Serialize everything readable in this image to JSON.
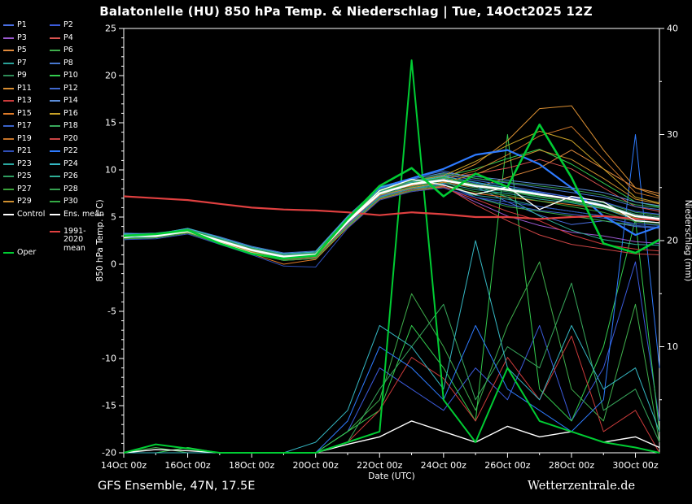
{
  "title": "Balatonlelle  (HU)  850 hPa Temp. & Niederschlag | Tue, 14Oct2025 12Z",
  "footer": {
    "left": "GFS Ensemble, 47N, 17.5E",
    "right": "Wetterzentrale.de"
  },
  "chart_data": {
    "type": "line",
    "title": "Balatonlelle (HU) 850 hPa Temp. & Niederschlag | Tue, 14Oct2025 12Z",
    "xlabel": "Date (UTC)",
    "ylabel_left": "850 hPa Temp. (°C)",
    "ylabel_right": "Niederschlag (mm)",
    "ylim_left": [
      -20,
      25
    ],
    "ylim_right": [
      0,
      40
    ],
    "y_ticks_left": [
      25,
      20,
      15,
      10,
      5,
      0,
      -5,
      -10,
      -15,
      -20
    ],
    "y_ticks_right": [
      40,
      30,
      20,
      10
    ],
    "x_domain": [
      14,
      30.75
    ],
    "x_ticks": [
      {
        "day": 14,
        "label": "14Oct 00z"
      },
      {
        "day": 16,
        "label": "16Oct 00z"
      },
      {
        "day": 18,
        "label": "18Oct 00z"
      },
      {
        "day": 20,
        "label": "20Oct 00z"
      },
      {
        "day": 22,
        "label": "22Oct 00z"
      },
      {
        "day": 24,
        "label": "24Oct 00z"
      },
      {
        "day": 26,
        "label": "26Oct 00z"
      },
      {
        "day": 28,
        "label": "28Oct 00z"
      },
      {
        "day": 30,
        "label": "30Oct 00z"
      }
    ],
    "x_days": [
      14,
      15,
      16,
      17,
      18,
      19,
      20,
      21,
      22,
      23,
      24,
      25,
      26,
      27,
      28,
      29,
      30,
      30.75
    ],
    "members": [
      {
        "label": "P1",
        "color": "#4a6fe3",
        "temp": [
          2.6,
          2.9,
          3.3,
          2.3,
          1.3,
          0.6,
          0.8,
          4.2,
          7.0,
          8.6,
          9.0,
          8.2,
          6.6,
          5.2,
          4.2,
          4.6,
          4.0,
          3.8
        ]
      },
      {
        "label": "P2",
        "color": "#3b5bdb",
        "temp": [
          3.2,
          3.1,
          3.7,
          2.8,
          1.8,
          1.1,
          1.3,
          4.9,
          8.0,
          8.9,
          9.4,
          8.6,
          8.1,
          7.6,
          7.1,
          6.6,
          5.6,
          5.3
        ],
        "precip": [
          0,
          0,
          0,
          0,
          0,
          0,
          0,
          2,
          8,
          6,
          4,
          8,
          5,
          12,
          3,
          8,
          18,
          3
        ]
      },
      {
        "label": "P3",
        "color": "#9b59d0",
        "temp": [
          2.8,
          3.0,
          3.4,
          2.4,
          1.4,
          0.7,
          0.9,
          4.3,
          7.2,
          8.0,
          8.2,
          6.6,
          5.1,
          4.1,
          3.4,
          3.0,
          2.4,
          2.2
        ]
      },
      {
        "label": "P4",
        "color": "#d9534f",
        "temp": [
          3.1,
          3.2,
          3.6,
          2.7,
          1.7,
          1.0,
          1.2,
          4.8,
          7.8,
          8.3,
          9.1,
          9.6,
          10.2,
          11.1,
          10.1,
          8.1,
          6.1,
          5.6
        ]
      },
      {
        "label": "P5",
        "color": "#e08a3c",
        "temp": [
          2.9,
          3.0,
          3.5,
          2.5,
          1.5,
          0.8,
          1.0,
          4.5,
          7.4,
          8.1,
          8.7,
          8.1,
          9.2,
          10.2,
          12.1,
          10.1,
          8.1,
          7.5
        ]
      },
      {
        "label": "P6",
        "color": "#3fae4c",
        "temp": [
          3.0,
          3.1,
          3.6,
          2.7,
          1.7,
          1.0,
          1.1,
          4.6,
          7.6,
          8.5,
          8.9,
          7.1,
          6.1,
          5.6,
          5.1,
          4.6,
          4.1,
          3.9
        ],
        "precip": [
          0,
          0.5,
          0,
          0,
          0,
          0,
          0,
          2,
          5,
          15,
          10,
          4,
          12,
          18,
          6,
          3,
          14,
          1
        ]
      },
      {
        "label": "P7",
        "color": "#2aa198",
        "temp": [
          2.7,
          2.9,
          3.3,
          2.3,
          1.3,
          0.5,
          0.7,
          4.1,
          7.1,
          8.0,
          8.4,
          7.3,
          6.9,
          6.1,
          5.6,
          5.1,
          4.6,
          4.4
        ]
      },
      {
        "label": "P8",
        "color": "#4878d0",
        "temp": [
          3.3,
          3.2,
          3.8,
          2.9,
          1.9,
          1.2,
          1.4,
          5.1,
          8.2,
          9.1,
          9.9,
          9.1,
          8.6,
          8.1,
          7.6,
          7.1,
          6.1,
          5.8
        ]
      },
      {
        "label": "P9",
        "color": "#2e8b57",
        "temp": [
          2.6,
          2.8,
          3.4,
          2.4,
          1.2,
          0.4,
          0.6,
          4.4,
          7.3,
          8.2,
          8.8,
          8.3,
          7.9,
          7.1,
          6.6,
          6.1,
          5.1,
          4.8
        ]
      },
      {
        "label": "P10",
        "color": "#33cc4e",
        "temp": [
          3.0,
          3.0,
          3.5,
          2.6,
          1.6,
          0.9,
          1.1,
          4.7,
          7.7,
          8.6,
          9.3,
          10.1,
          11.2,
          12.2,
          10.6,
          8.6,
          6.6,
          6.1
        ],
        "precip": [
          0,
          0,
          0.5,
          0,
          0,
          0,
          0,
          2,
          4,
          12,
          8,
          3,
          30,
          6,
          3,
          10,
          22,
          2
        ]
      },
      {
        "label": "P11",
        "color": "#d98e32",
        "temp": [
          2.8,
          3.1,
          3.5,
          2.5,
          1.4,
          0.7,
          0.9,
          4.6,
          7.5,
          8.4,
          9.1,
          10.6,
          13.1,
          16.5,
          16.8,
          12.1,
          8.1,
          7.2
        ]
      },
      {
        "label": "P12",
        "color": "#4169cf",
        "temp": [
          3.1,
          3.0,
          3.6,
          2.7,
          1.8,
          1.1,
          1.2,
          4.9,
          7.9,
          8.7,
          9.5,
          8.9,
          8.3,
          7.7,
          7.1,
          6.3,
          5.3,
          5.0
        ]
      },
      {
        "label": "P13",
        "color": "#cc3b3b",
        "temp": [
          2.9,
          2.9,
          3.4,
          2.3,
          1.3,
          0.6,
          0.8,
          4.2,
          7.0,
          7.7,
          8.1,
          6.9,
          5.6,
          4.6,
          3.1,
          2.1,
          1.6,
          1.4
        ],
        "precip": [
          0,
          0,
          0,
          0,
          0,
          0,
          0,
          1,
          4,
          9,
          7,
          3,
          9,
          5,
          11,
          2,
          4,
          0
        ]
      },
      {
        "label": "P14",
        "color": "#5b8dd9",
        "temp": [
          3.2,
          3.3,
          3.7,
          2.8,
          1.7,
          1.0,
          1.3,
          5.0,
          8.1,
          9.0,
          9.7,
          9.3,
          8.9,
          8.5,
          8.1,
          7.6,
          6.6,
          6.2
        ]
      },
      {
        "label": "P15",
        "color": "#e07b28",
        "temp": [
          2.7,
          2.8,
          3.3,
          2.2,
          1.1,
          0.0,
          0.5,
          3.9,
          6.9,
          7.8,
          8.2,
          7.5,
          7.1,
          6.7,
          6.3,
          5.9,
          4.9,
          4.6
        ]
      },
      {
        "label": "P16",
        "color": "#c9a227",
        "temp": [
          3.0,
          3.2,
          3.6,
          2.6,
          1.5,
          0.8,
          1.0,
          4.6,
          7.8,
          8.8,
          9.4,
          10.9,
          12.6,
          14.1,
          13.1,
          10.1,
          7.1,
          6.5
        ]
      },
      {
        "label": "P17",
        "color": "#3a62c9",
        "temp": [
          2.8,
          3.0,
          3.5,
          2.4,
          1.4,
          0.7,
          0.9,
          4.3,
          7.2,
          8.1,
          8.5,
          7.1,
          6.3,
          5.7,
          5.3,
          4.9,
          4.3,
          4.1
        ]
      },
      {
        "label": "P18",
        "color": "#38a85c",
        "temp": [
          3.1,
          3.1,
          3.7,
          2.7,
          1.6,
          0.9,
          1.1,
          4.8,
          7.9,
          8.9,
          9.2,
          8.5,
          8.0,
          7.3,
          6.9,
          6.5,
          5.5,
          5.2
        ],
        "precip": [
          0,
          0,
          0,
          0,
          0,
          0,
          0,
          1,
          6,
          10,
          14,
          5,
          10,
          8,
          16,
          4,
          6,
          1
        ]
      },
      {
        "label": "P19",
        "color": "#c77429",
        "temp": [
          2.9,
          3.0,
          3.4,
          2.5,
          1.5,
          0.8,
          1.0,
          4.5,
          7.6,
          8.3,
          9.0,
          9.9,
          11.6,
          13.6,
          14.6,
          11.1,
          7.6,
          7.0
        ]
      },
      {
        "label": "P20",
        "color": "#cc4444",
        "temp": [
          3.0,
          2.9,
          3.5,
          2.4,
          1.3,
          0.5,
          0.7,
          4.0,
          7.0,
          7.9,
          8.3,
          6.3,
          4.6,
          3.1,
          2.1,
          1.6,
          1.1,
          1.0
        ]
      },
      {
        "label": "P21",
        "color": "#2f4fb8",
        "temp": [
          2.6,
          2.7,
          3.2,
          2.1,
          1.0,
          -0.2,
          -0.3,
          3.8,
          6.8,
          7.7,
          8.1,
          7.1,
          6.6,
          6.1,
          5.6,
          5.1,
          4.1,
          3.9
        ]
      },
      {
        "label": "P22",
        "color": "#2e7bff",
        "width": 2.2,
        "temp": [
          3.0,
          3.1,
          3.6,
          2.6,
          1.6,
          0.9,
          1.1,
          4.8,
          8.1,
          9.1,
          10.1,
          11.6,
          12.1,
          10.6,
          8.1,
          5.1,
          3.1,
          4.0
        ],
        "precip": [
          0,
          0,
          0,
          0,
          0,
          0,
          0,
          3,
          10,
          8,
          5,
          12,
          6,
          4,
          2,
          5,
          30,
          8
        ]
      },
      {
        "label": "P23",
        "color": "#2aa8a0",
        "temp": [
          2.8,
          2.9,
          3.4,
          2.3,
          1.2,
          0.4,
          0.6,
          4.1,
          7.1,
          8.0,
          8.6,
          7.9,
          7.5,
          6.9,
          6.5,
          5.9,
          4.7,
          4.4
        ]
      },
      {
        "label": "P24",
        "color": "#35b8c4",
        "temp": [
          3.2,
          3.2,
          3.8,
          2.8,
          1.8,
          1.1,
          1.3,
          5.0,
          8.2,
          8.7,
          9.3,
          8.7,
          8.1,
          7.5,
          6.9,
          6.1,
          5.1,
          4.8
        ],
        "precip": [
          0,
          0,
          0,
          0,
          0,
          0,
          1,
          4,
          12,
          10,
          6,
          20,
          8,
          5,
          12,
          6,
          8,
          2
        ]
      },
      {
        "label": "P25",
        "color": "#2f9e60",
        "temp": [
          2.9,
          3.0,
          3.5,
          2.5,
          1.4,
          0.6,
          0.8,
          4.4,
          7.4,
          8.2,
          8.9,
          8.1,
          7.7,
          7.1,
          6.7,
          6.3,
          5.3,
          5.0
        ]
      },
      {
        "label": "P26",
        "color": "#2fae96",
        "temp": [
          3.0,
          3.1,
          3.5,
          2.6,
          1.5,
          0.8,
          1.0,
          4.7,
          7.7,
          8.5,
          9.1,
          8.3,
          7.1,
          5.1,
          3.6,
          2.6,
          2.1,
          2.0
        ]
      },
      {
        "label": "P27",
        "color": "#3aa23a",
        "temp": [
          2.7,
          2.8,
          3.3,
          2.2,
          1.1,
          0.4,
          0.6,
          4.0,
          7.0,
          7.8,
          8.4,
          7.7,
          7.3,
          6.7,
          6.1,
          5.5,
          4.5,
          4.2
        ]
      },
      {
        "label": "P28",
        "color": "#36a050",
        "temp": [
          3.1,
          3.2,
          3.7,
          2.7,
          1.7,
          1.0,
          1.2,
          4.9,
          7.9,
          8.8,
          9.6,
          9.1,
          8.7,
          8.3,
          7.9,
          7.3,
          6.3,
          6.0
        ]
      },
      {
        "label": "P29",
        "color": "#cf8f2f",
        "temp": [
          2.9,
          3.0,
          3.4,
          2.4,
          1.3,
          0.6,
          0.8,
          4.4,
          7.3,
          8.1,
          8.7,
          9.5,
          10.9,
          12.1,
          11.1,
          9.1,
          6.9,
          6.4
        ]
      },
      {
        "label": "P30",
        "color": "#34aa44",
        "temp": [
          3.0,
          3.1,
          3.6,
          2.6,
          1.6,
          0.9,
          1.1,
          4.8,
          7.8,
          8.6,
          9.2,
          8.4,
          7.8,
          7.2,
          6.6,
          6.0,
          5.0,
          4.7
        ]
      }
    ],
    "specials": {
      "control": {
        "label": "Control",
        "color": "#ffffff",
        "width": 1.3,
        "temp": [
          2.8,
          3.2,
          3.5,
          2.3,
          1.2,
          0.6,
          0.9,
          4.6,
          7.8,
          9.0,
          8.4,
          7.4,
          8.2,
          5.8,
          7.2,
          6.6,
          4.6,
          4.4
        ]
      },
      "ens_mean": {
        "label": "Ens. mean",
        "color": "#ffffff",
        "width": 2.6,
        "temp": [
          3.0,
          3.0,
          3.5,
          2.5,
          1.5,
          0.8,
          1.0,
          4.5,
          7.5,
          8.5,
          8.9,
          8.3,
          7.9,
          7.4,
          6.9,
          6.2,
          5.1,
          4.8
        ],
        "precip": [
          0,
          0.3,
          0.2,
          0,
          0,
          0,
          0,
          0.8,
          1.5,
          3,
          2,
          1,
          2.5,
          1.5,
          2,
          1,
          1.5,
          0.5
        ]
      },
      "oper": {
        "label": "Oper",
        "color": "#00cc33",
        "width": 2.6,
        "temp": [
          3.0,
          3.2,
          3.6,
          2.2,
          1.1,
          0.6,
          0.9,
          4.8,
          8.3,
          10.2,
          7.2,
          9.6,
          8.2,
          14.8,
          9.2,
          2.2,
          1.2,
          2.6
        ],
        "precip": [
          0,
          0.8,
          0.4,
          0,
          0,
          0,
          0,
          1,
          2,
          37,
          5,
          1,
          8,
          3,
          2,
          1,
          0.5,
          0
        ]
      },
      "clim_mean": {
        "label": "1991-2020 mean",
        "color": "#e04040",
        "width": 2.2,
        "temp": [
          7.2,
          7.0,
          6.8,
          6.4,
          6.0,
          5.8,
          5.7,
          5.5,
          5.2,
          5.5,
          5.3,
          5.0,
          5.0,
          4.8,
          5.0,
          5.1,
          4.8,
          4.7
        ]
      }
    }
  }
}
